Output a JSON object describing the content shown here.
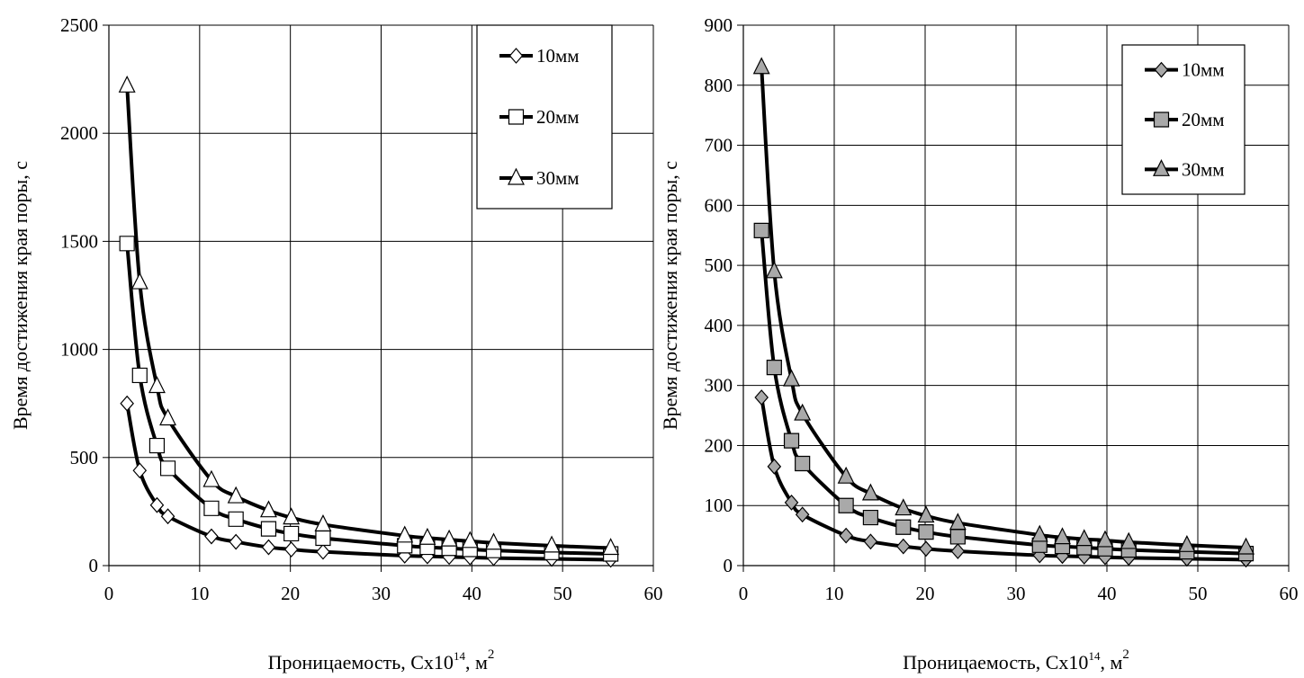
{
  "chart_data": [
    {
      "type": "line",
      "xlabel": "Проницаемость, Cx10",
      "xlabel_sup": "14",
      "xlabel_tail": ", м",
      "xlabel_tail_sup": "2",
      "ylabel": "Время достижения края поры, с",
      "xlim": [
        0,
        60
      ],
      "ylim": [
        0,
        2500
      ],
      "x_ticks": [
        0,
        10,
        20,
        30,
        40,
        50,
        60
      ],
      "y_ticks": [
        0,
        500,
        1000,
        1500,
        2000,
        2500
      ],
      "grid": true,
      "legend_position": "top-right",
      "marker_fill": "#ffffff",
      "line_color": "#000000",
      "x": [
        2,
        3.4,
        5.3,
        6.5,
        11.3,
        14,
        17.6,
        20.1,
        23.6,
        32.6,
        35.1,
        37.5,
        39.8,
        42.4,
        48.8,
        55.3
      ],
      "series": [
        {
          "name": "10мм",
          "marker": "diamond",
          "values": [
            750,
            440,
            280,
            228,
            135,
            110,
            85,
            75,
            64,
            46,
            43,
            40,
            38,
            35,
            31,
            27
          ]
        },
        {
          "name": "20мм",
          "marker": "square",
          "values": [
            1490,
            880,
            555,
            450,
            265,
            215,
            170,
            148,
            127,
            92,
            85,
            80,
            75,
            70,
            61,
            54
          ]
        },
        {
          "name": "30мм",
          "marker": "triangle",
          "values": [
            2220,
            1310,
            830,
            680,
            395,
            320,
            255,
            222,
            190,
            138,
            128,
            120,
            113,
            105,
            92,
            81
          ]
        }
      ]
    },
    {
      "type": "line",
      "xlabel": "Проницаемость, Cx10",
      "xlabel_sup": "14",
      "xlabel_tail": ", м",
      "xlabel_tail_sup": "2",
      "ylabel": "Время достижения края поры, с",
      "xlim": [
        0,
        60
      ],
      "ylim": [
        0,
        900
      ],
      "x_ticks": [
        0,
        10,
        20,
        30,
        40,
        50,
        60
      ],
      "y_ticks": [
        0,
        100,
        200,
        300,
        400,
        500,
        600,
        700,
        800,
        900
      ],
      "grid": true,
      "legend_position": "top-right",
      "marker_fill": "#a9a9a9",
      "line_color": "#000000",
      "x": [
        2,
        3.4,
        5.3,
        6.5,
        11.3,
        14,
        17.6,
        20.1,
        23.6,
        32.6,
        35.1,
        37.5,
        39.8,
        42.4,
        48.8,
        55.3
      ],
      "series": [
        {
          "name": "10мм",
          "marker": "diamond",
          "values": [
            280,
            165,
            105,
            85,
            50,
            40,
            32,
            28,
            24,
            17,
            16,
            15,
            14,
            13,
            11.5,
            10
          ]
        },
        {
          "name": "20мм",
          "marker": "square",
          "values": [
            558,
            330,
            208,
            170,
            100,
            80,
            64,
            56,
            48,
            34,
            32,
            30,
            28,
            26,
            23,
            20
          ]
        },
        {
          "name": "30мм",
          "marker": "triangle",
          "values": [
            830,
            490,
            310,
            253,
            148,
            120,
            95,
            83,
            71,
            51,
            47,
            44,
            42,
            39,
            34,
            30
          ]
        }
      ]
    }
  ]
}
